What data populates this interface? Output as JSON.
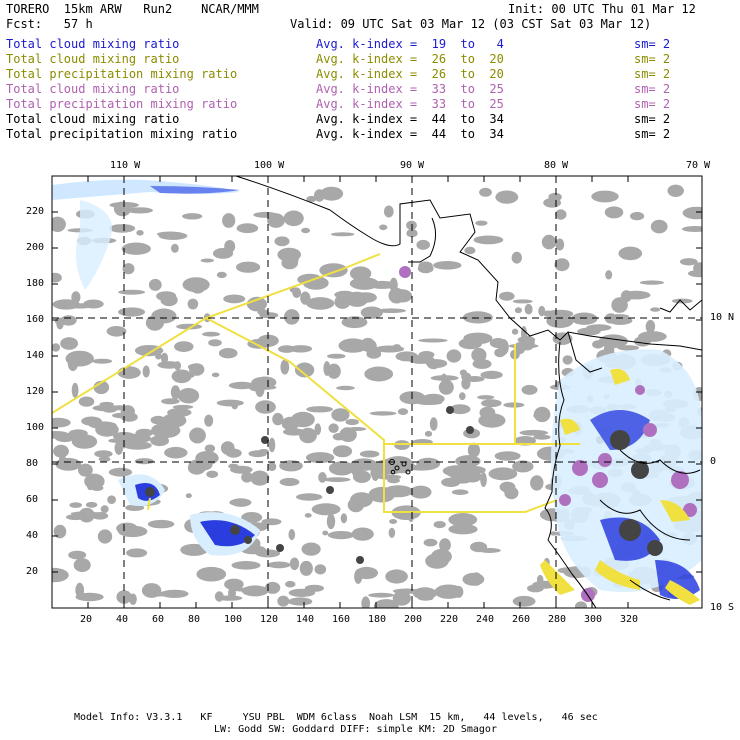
{
  "header": {
    "model": "TORERO  15km ARW   Run2    NCAR/MMM",
    "init": "Init: 00 UTC Thu 01 Mar 12",
    "fcst": "Fcst:   57 h",
    "valid": "Valid: 09 UTC Sat 03 Mar 12 (03 CST Sat 03 Mar 12)"
  },
  "legend": [
    {
      "field": "Total cloud mixing ratio",
      "kindex": "Avg. k-index =  19  to   4",
      "sm": "sm= 2",
      "color": "#1a1ad0"
    },
    {
      "field": "Total cloud mixing ratio",
      "kindex": "Avg. k-index =  26  to  20",
      "sm": "sm= 2",
      "color": "#8c8c00"
    },
    {
      "field": "Total precipitation mixing ratio",
      "kindex": "Avg. k-index =  26  to  20",
      "sm": "sm= 2",
      "color": "#8c8c00"
    },
    {
      "field": "Total cloud mixing ratio",
      "kindex": "Avg. k-index =  33  to  25",
      "sm": "sm= 2",
      "color": "#b060b0"
    },
    {
      "field": "Total precipitation mixing ratio",
      "kindex": "Avg. k-index =  33  to  25",
      "sm": "sm= 2",
      "color": "#b060b0"
    },
    {
      "field": "Total cloud mixing ratio",
      "kindex": "Avg. k-index =  44  to  34",
      "sm": "sm= 2",
      "color": "#000000"
    },
    {
      "field": "Total precipitation mixing ratio",
      "kindex": "Avg. k-index =  44  to  34",
      "sm": "sm= 2",
      "color": "#000000"
    }
  ],
  "axes": {
    "lon_labels": [
      "110 W",
      "100 W",
      "90 W",
      "80 W",
      "70 W"
    ],
    "lat_labels": [
      "10 N",
      "0",
      "10 S"
    ],
    "x_ticks": [
      "20",
      "40",
      "60",
      "80",
      "100",
      "120",
      "140",
      "160",
      "180",
      "200",
      "220",
      "240",
      "260",
      "280",
      "300",
      "320"
    ],
    "y_ticks": [
      "220",
      "200",
      "180",
      "160",
      "140",
      "120",
      "100",
      "80",
      "60",
      "40",
      "20"
    ]
  },
  "footer": {
    "line1": "Model Info: V3.3.1   KF     YSU PBL  WDM 6class  Noah LSM  15 km,   44 levels,   46 sec",
    "line2": "LW: Godd SW: Goddard DIFF: simple KM: 2D Smagor"
  },
  "colors": {
    "cloud_gray": "#a8a8a8",
    "dark_core": "#444444",
    "yellow_boundary": "#f0e040",
    "blue_cloud": "#2a3ee0",
    "light_blue": "#cfe8ff",
    "purple": "#b070c0",
    "coast": "#000000"
  }
}
